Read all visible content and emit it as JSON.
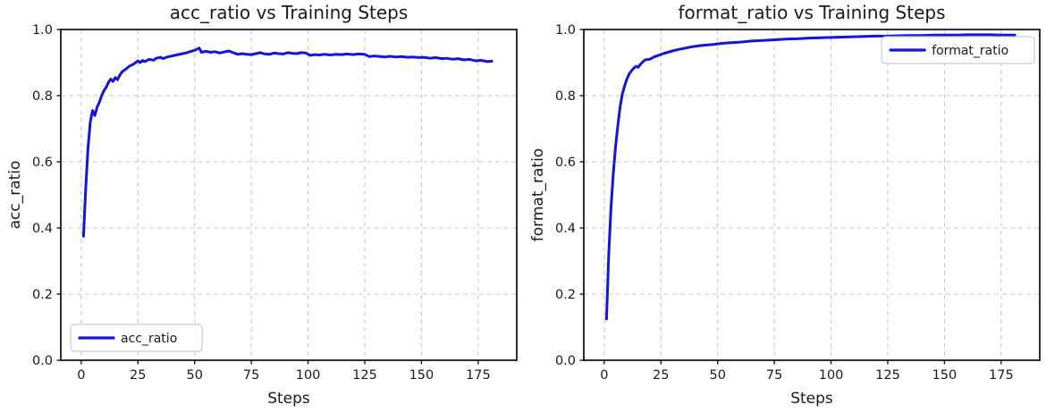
{
  "style": {
    "line_color": "#1414dd",
    "grid_color": "#c9c9c9",
    "spine_color": "#1a1a1a",
    "text_color": "#1a1a1a",
    "legend_border_color": "#cccccc",
    "background": "#ffffff"
  },
  "chart_data": [
    {
      "type": "line",
      "title": "acc_ratio vs Training Steps",
      "xlabel": "Steps",
      "ylabel": "acc_ratio",
      "xlim": [
        -9,
        192
      ],
      "ylim": [
        0,
        1.0
      ],
      "xticks": [
        0,
        25,
        50,
        75,
        100,
        125,
        150,
        175
      ],
      "xtick_labels": [
        "0",
        "25",
        "50",
        "75",
        "100",
        "125",
        "150",
        "175"
      ],
      "yticks": [
        0,
        0.2,
        0.4,
        0.6,
        0.8,
        1.0
      ],
      "ytick_labels": [
        "0.0",
        "0.2",
        "0.4",
        "0.6",
        "0.8",
        "1.0"
      ],
      "grid": true,
      "grid_style": "dashed",
      "line_color": "#1414dd",
      "line_width": 3,
      "legend": {
        "label": "acc_ratio",
        "position": "lower-left"
      },
      "series": [
        {
          "name": "acc_ratio",
          "x": [
            1,
            2,
            3,
            4,
            5,
            6,
            7,
            8,
            9,
            10,
            11,
            12,
            13,
            14,
            15,
            16,
            17,
            18,
            20,
            21,
            23,
            24,
            25,
            26,
            27,
            28,
            30,
            32,
            33,
            35,
            36,
            38,
            40,
            42,
            44,
            46,
            48,
            50,
            52,
            53,
            55,
            57,
            59,
            61,
            63,
            65,
            67,
            69,
            71,
            73,
            75,
            77,
            79,
            81,
            83,
            85,
            87,
            89,
            91,
            93,
            95,
            97,
            99,
            101,
            103,
            105,
            107,
            110,
            112,
            115,
            117,
            120,
            122,
            125,
            127,
            129,
            131,
            134,
            136,
            139,
            141,
            144,
            146,
            149,
            151,
            154,
            156,
            159,
            161,
            164,
            166,
            169,
            171,
            174,
            176,
            179,
            181
          ],
          "y": [
            0.375,
            0.52,
            0.64,
            0.72,
            0.755,
            0.74,
            0.765,
            0.78,
            0.8,
            0.815,
            0.825,
            0.84,
            0.85,
            0.843,
            0.855,
            0.848,
            0.862,
            0.872,
            0.882,
            0.888,
            0.895,
            0.9,
            0.905,
            0.9,
            0.906,
            0.903,
            0.91,
            0.907,
            0.913,
            0.916,
            0.912,
            0.917,
            0.92,
            0.923,
            0.926,
            0.929,
            0.933,
            0.937,
            0.944,
            0.931,
            0.934,
            0.931,
            0.933,
            0.929,
            0.932,
            0.935,
            0.93,
            0.925,
            0.927,
            0.925,
            0.924,
            0.927,
            0.93,
            0.926,
            0.925,
            0.929,
            0.927,
            0.926,
            0.93,
            0.928,
            0.927,
            0.93,
            0.929,
            0.922,
            0.924,
            0.923,
            0.925,
            0.923,
            0.925,
            0.924,
            0.926,
            0.924,
            0.926,
            0.925,
            0.918,
            0.92,
            0.919,
            0.917,
            0.919,
            0.917,
            0.918,
            0.916,
            0.917,
            0.915,
            0.916,
            0.913,
            0.915,
            0.912,
            0.913,
            0.91,
            0.912,
            0.908,
            0.91,
            0.905,
            0.907,
            0.903,
            0.904
          ]
        }
      ]
    },
    {
      "type": "line",
      "title": "format_ratio vs Training Steps",
      "xlabel": "Steps",
      "ylabel": "format_ratio",
      "xlim": [
        -9,
        192
      ],
      "ylim": [
        0,
        1.0
      ],
      "xticks": [
        0,
        25,
        50,
        75,
        100,
        125,
        150,
        175
      ],
      "xtick_labels": [
        "0",
        "25",
        "50",
        "75",
        "100",
        "125",
        "150",
        "175"
      ],
      "yticks": [
        0,
        0.2,
        0.4,
        0.6,
        0.8,
        1.0
      ],
      "ytick_labels": [
        "0.0",
        "0.2",
        "0.4",
        "0.6",
        "0.8",
        "1.0"
      ],
      "grid": true,
      "grid_style": "dashed",
      "line_color": "#1414dd",
      "line_width": 3,
      "legend": {
        "label": "format_ratio",
        "position": "upper-right"
      },
      "series": [
        {
          "name": "format_ratio",
          "x": [
            1,
            2,
            3,
            4,
            5,
            6,
            7,
            8,
            9,
            10,
            11,
            12,
            13,
            14,
            15,
            16,
            17,
            18,
            20,
            22,
            24,
            26,
            28,
            30,
            33,
            36,
            39,
            42,
            45,
            48,
            52,
            56,
            60,
            65,
            70,
            75,
            80,
            85,
            90,
            95,
            100,
            105,
            110,
            115,
            120,
            125,
            130,
            135,
            140,
            145,
            150,
            155,
            160,
            165,
            170,
            175,
            178,
            181
          ],
          "y": [
            0.125,
            0.32,
            0.46,
            0.565,
            0.645,
            0.71,
            0.765,
            0.805,
            0.83,
            0.85,
            0.865,
            0.875,
            0.883,
            0.889,
            0.886,
            0.895,
            0.902,
            0.908,
            0.91,
            0.917,
            0.922,
            0.927,
            0.931,
            0.935,
            0.94,
            0.944,
            0.948,
            0.951,
            0.953,
            0.955,
            0.958,
            0.96,
            0.962,
            0.965,
            0.967,
            0.969,
            0.971,
            0.972,
            0.974,
            0.975,
            0.976,
            0.977,
            0.978,
            0.979,
            0.98,
            0.98,
            0.981,
            0.982,
            0.982,
            0.983,
            0.983,
            0.983,
            0.984,
            0.984,
            0.984,
            0.983,
            0.983,
            0.983
          ]
        }
      ]
    }
  ]
}
